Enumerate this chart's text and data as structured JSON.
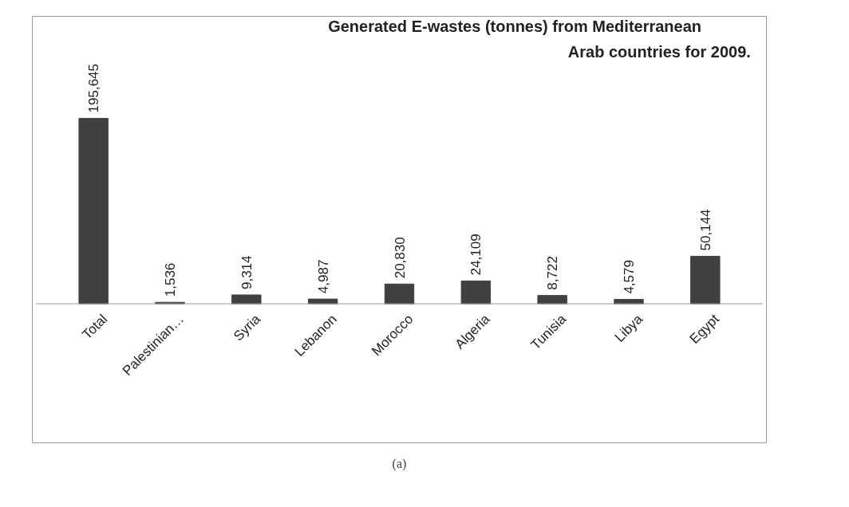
{
  "chart_data": {
    "type": "bar",
    "title": "Generated E-wastes (tonnes) from Mediterranean Arab countries for 2009.",
    "categories": [
      "Total",
      "Palestinian…",
      "Syria",
      "Lebanon",
      "Morocco",
      "Algeria",
      "Tunisia",
      "Libya",
      "Egypt"
    ],
    "values": [
      195645,
      1536,
      9314,
      4987,
      20830,
      24109,
      8722,
      4579,
      50144
    ],
    "value_labels": [
      "195,645",
      "1,536",
      "9,314",
      "4,987",
      "20,830",
      "24,109",
      "8,722",
      "4,579",
      "50,144"
    ],
    "color": "#404040",
    "annotations": [
      "(a)"
    ]
  }
}
